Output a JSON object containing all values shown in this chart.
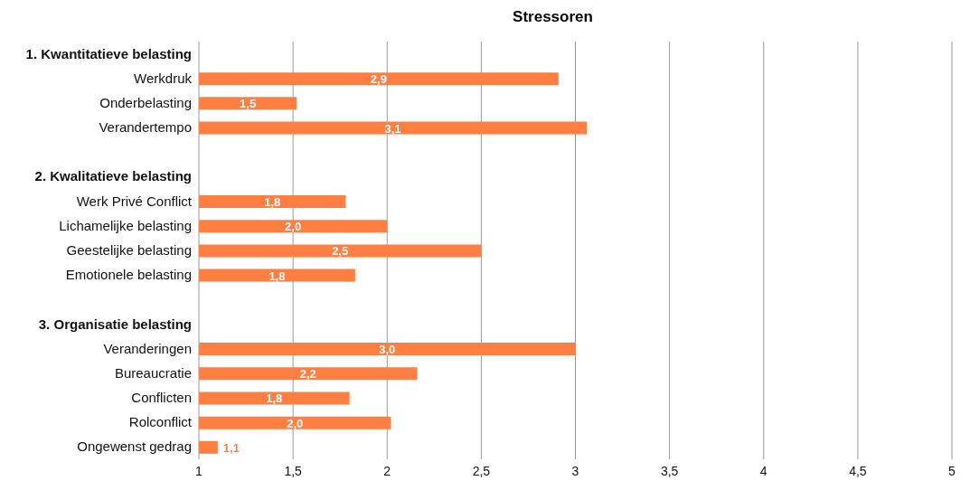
{
  "chart_data": {
    "type": "bar",
    "orientation": "horizontal",
    "title": "Stressoren",
    "categories": [
      "1. Kwantitatieve belasting",
      "Werkdruk",
      "Onderbelasting",
      "Verandertempo",
      null,
      "2. Kwalitatieve belasting",
      "Werk Privé Conflict",
      "Lichamelijke belasting",
      "Geestelijke belasting",
      "Emotionele belasting",
      null,
      "3. Organisatie belasting",
      "Veranderingen",
      "Bureaucratie",
      "Conflicten",
      "Rolconflict",
      "Ongewenst gedrag"
    ],
    "values": [
      null,
      2.91,
      1.52,
      3.06,
      null,
      null,
      1.78,
      2.0,
      2.5,
      1.83,
      null,
      null,
      3.0,
      2.16,
      1.8,
      2.02,
      1.1
    ],
    "value_labels": [
      null,
      "2,9",
      "1,5",
      "3,1",
      null,
      null,
      "1,8",
      "2,0",
      "2,5",
      "1,8",
      null,
      null,
      "3,0",
      "2,2",
      "1,8",
      "2,0",
      "1,1"
    ],
    "color": "#ff7f43",
    "xlim": [
      1,
      5
    ],
    "xticks": [
      1,
      {
        "value": 1.5,
        "label": "1,5"
      },
      2,
      {
        "value": 2.5,
        "label": "2,5"
      },
      3,
      {
        "value": 3.5,
        "label": "3,5"
      },
      4,
      {
        "value": 4.5,
        "label": "4,5"
      },
      5
    ],
    "grid": "x",
    "legend": false
  }
}
